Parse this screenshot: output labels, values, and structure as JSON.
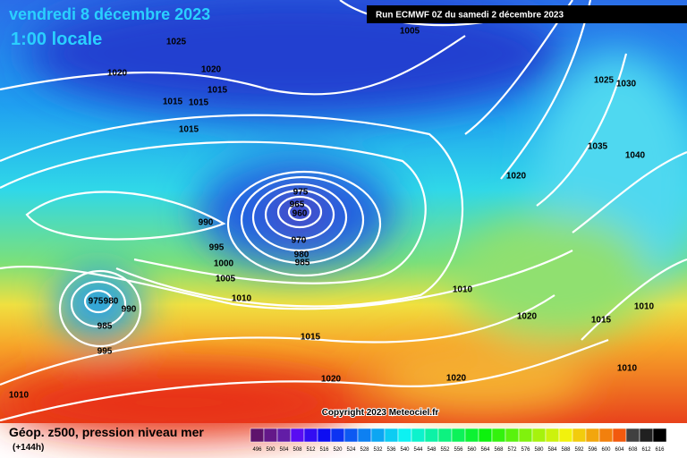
{
  "header": {
    "date": "vendredi 8 décembre 2023",
    "time": "1:00 locale",
    "run": "Run ECMWF 0Z du samedi 2 décembre 2023"
  },
  "map": {
    "copyright": "Copyright 2023 Meteociel.fr",
    "isobar_labels": [
      1025,
      1005,
      1020,
      1020,
      1015,
      1015,
      1015,
      1015,
      1025,
      1030,
      1035,
      1040,
      1020,
      975,
      965,
      960,
      990,
      970,
      995,
      980,
      985,
      1000,
      1005,
      1010,
      1010,
      975,
      980,
      990,
      1020,
      1015,
      1010,
      985,
      1015,
      995,
      1010,
      1020,
      1020,
      1010
    ]
  },
  "legend": {
    "title": "Géop. z500, pression niveau mer",
    "lead": "(+144h)",
    "scale": [
      496,
      500,
      504,
      508,
      512,
      516,
      520,
      524,
      528,
      532,
      536,
      540,
      544,
      548,
      552,
      556,
      560,
      564,
      568,
      572,
      576,
      580,
      584,
      588,
      592,
      596,
      600,
      604,
      608,
      612,
      616
    ]
  }
}
